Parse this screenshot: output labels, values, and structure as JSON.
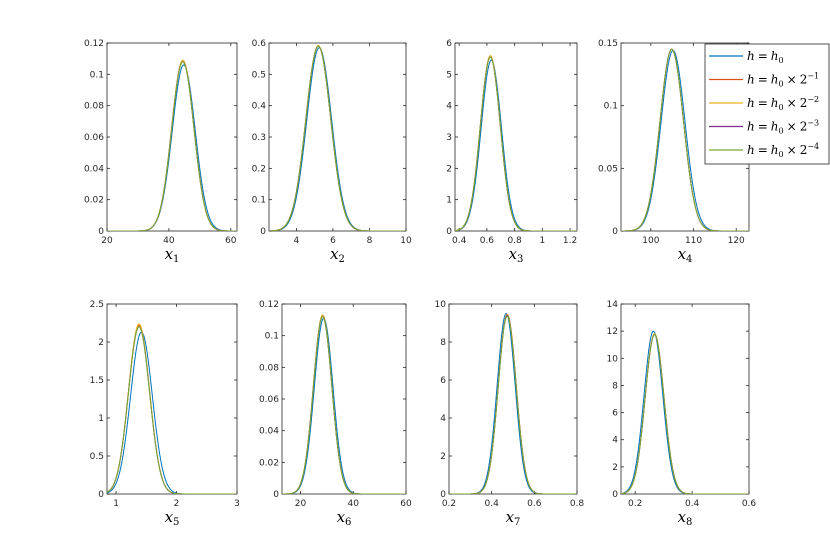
{
  "chart_data": [
    {
      "type": "line",
      "xlabel": {
        "base": "x",
        "sub": "1"
      },
      "xlim": [
        20,
        62
      ],
      "ylim": [
        0,
        0.12
      ],
      "xticks": [
        "20",
        "40",
        "60"
      ],
      "yticks": [
        "0",
        "0.02",
        "0.04",
        "0.06",
        "0.08",
        "0.1",
        "0.12"
      ],
      "series": [
        {
          "name": "h = h0",
          "peak_x": 44.8,
          "peak_y": 0.106,
          "sd": 3.7
        },
        {
          "name": "h = h0 × 2^-1",
          "peak_x": 44.5,
          "peak_y": 0.109,
          "sd": 3.6
        },
        {
          "name": "h = h0 × 2^-2",
          "peak_x": 44.5,
          "peak_y": 0.109,
          "sd": 3.6
        },
        {
          "name": "h = h0 × 2^-3",
          "peak_x": 44.5,
          "peak_y": 0.108,
          "sd": 3.6
        },
        {
          "name": "h = h0 × 2^-4",
          "peak_x": 44.5,
          "peak_y": 0.108,
          "sd": 3.6
        }
      ]
    },
    {
      "type": "line",
      "xlabel": {
        "base": "x",
        "sub": "2"
      },
      "xlim": [
        2.5,
        10
      ],
      "ylim": [
        0,
        0.6
      ],
      "xticks": [
        "4",
        "6",
        "8",
        "10"
      ],
      "yticks": [
        "0",
        "0.1",
        "0.2",
        "0.3",
        "0.4",
        "0.5",
        "0.6"
      ],
      "series": [
        {
          "name": "h = h0",
          "peak_x": 5.25,
          "peak_y": 0.585,
          "sd": 0.68
        },
        {
          "name": "h = h0 × 2^-1",
          "peak_x": 5.2,
          "peak_y": 0.59,
          "sd": 0.68
        },
        {
          "name": "h = h0 × 2^-2",
          "peak_x": 5.2,
          "peak_y": 0.592,
          "sd": 0.68
        },
        {
          "name": "h = h0 × 2^-3",
          "peak_x": 5.2,
          "peak_y": 0.59,
          "sd": 0.68
        },
        {
          "name": "h = h0 × 2^-4",
          "peak_x": 5.2,
          "peak_y": 0.59,
          "sd": 0.68
        }
      ]
    },
    {
      "type": "line",
      "xlabel": {
        "base": "x",
        "sub": "3"
      },
      "xlim": [
        0.37,
        1.25
      ],
      "ylim": [
        0,
        6
      ],
      "xticks": [
        "0.4",
        "0.6",
        "0.8",
        "1",
        "1.2"
      ],
      "yticks": [
        "0",
        "1",
        "2",
        "3",
        "4",
        "5",
        "6"
      ],
      "series": [
        {
          "name": "h = h0",
          "peak_x": 0.632,
          "peak_y": 5.45,
          "sd": 0.073
        },
        {
          "name": "h = h0 × 2^-1",
          "peak_x": 0.625,
          "peak_y": 5.55,
          "sd": 0.072
        },
        {
          "name": "h = h0 × 2^-2",
          "peak_x": 0.625,
          "peak_y": 5.6,
          "sd": 0.072
        },
        {
          "name": "h = h0 × 2^-3",
          "peak_x": 0.625,
          "peak_y": 5.55,
          "sd": 0.072
        },
        {
          "name": "h = h0 × 2^-4",
          "peak_x": 0.625,
          "peak_y": 5.55,
          "sd": 0.072
        }
      ]
    },
    {
      "type": "line",
      "xlabel": {
        "base": "x",
        "sub": "4"
      },
      "xlim": [
        93,
        123
      ],
      "ylim": [
        0,
        0.15
      ],
      "xticks": [
        "100",
        "110",
        "120"
      ],
      "yticks": [
        "0",
        "0.05",
        "0.1",
        "0.15"
      ],
      "series": [
        {
          "name": "h = h0",
          "peak_x": 105.2,
          "peak_y": 0.144,
          "sd": 2.8
        },
        {
          "name": "h = h0 × 2^-1",
          "peak_x": 104.9,
          "peak_y": 0.145,
          "sd": 2.75
        },
        {
          "name": "h = h0 × 2^-2",
          "peak_x": 104.9,
          "peak_y": 0.145,
          "sd": 2.75
        },
        {
          "name": "h = h0 × 2^-3",
          "peak_x": 104.9,
          "peak_y": 0.145,
          "sd": 2.75
        },
        {
          "name": "h = h0 × 2^-4",
          "peak_x": 104.9,
          "peak_y": 0.145,
          "sd": 2.75
        }
      ],
      "legend": "top-right"
    },
    {
      "type": "line",
      "xlabel": {
        "base": "x",
        "sub": "5"
      },
      "xlim": [
        0.85,
        3
      ],
      "ylim": [
        0,
        2.5
      ],
      "xticks": [
        "1",
        "2",
        "3"
      ],
      "yticks": [
        "0",
        "0.5",
        "1",
        "1.5",
        "2",
        "2.5"
      ],
      "series": [
        {
          "name": "h = h0",
          "peak_x": 1.42,
          "peak_y": 2.13,
          "sd": 0.18
        },
        {
          "name": "h = h0 × 2^-1",
          "peak_x": 1.38,
          "peak_y": 2.22,
          "sd": 0.175
        },
        {
          "name": "h = h0 × 2^-2",
          "peak_x": 1.38,
          "peak_y": 2.24,
          "sd": 0.175
        },
        {
          "name": "h = h0 × 2^-3",
          "peak_x": 1.38,
          "peak_y": 2.2,
          "sd": 0.175
        },
        {
          "name": "h = h0 × 2^-4",
          "peak_x": 1.38,
          "peak_y": 2.2,
          "sd": 0.175
        }
      ]
    },
    {
      "type": "line",
      "xlabel": {
        "base": "x",
        "sub": "6"
      },
      "xlim": [
        13,
        60
      ],
      "ylim": [
        0,
        0.12
      ],
      "xticks": [
        "20",
        "40",
        "60"
      ],
      "yticks": [
        "0",
        "0.02",
        "0.04",
        "0.06",
        "0.08",
        "0.1",
        "0.12"
      ],
      "series": [
        {
          "name": "h = h0",
          "peak_x": 28.8,
          "peak_y": 0.111,
          "sd": 3.55
        },
        {
          "name": "h = h0 × 2^-1",
          "peak_x": 28.4,
          "peak_y": 0.113,
          "sd": 3.5
        },
        {
          "name": "h = h0 × 2^-2",
          "peak_x": 28.4,
          "peak_y": 0.113,
          "sd": 3.5
        },
        {
          "name": "h = h0 × 2^-3",
          "peak_x": 28.4,
          "peak_y": 0.112,
          "sd": 3.5
        },
        {
          "name": "h = h0 × 2^-4",
          "peak_x": 28.4,
          "peak_y": 0.112,
          "sd": 3.5
        }
      ]
    },
    {
      "type": "line",
      "xlabel": {
        "base": "x",
        "sub": "7"
      },
      "xlim": [
        0.2,
        0.8
      ],
      "ylim": [
        0,
        10
      ],
      "xticks": [
        "0.2",
        "0.4",
        "0.6",
        "0.8"
      ],
      "yticks": [
        "0",
        "2",
        "4",
        "6",
        "8",
        "10"
      ],
      "series": [
        {
          "name": "h = h0",
          "peak_x": 0.468,
          "peak_y": 9.5,
          "sd": 0.042
        },
        {
          "name": "h = h0 × 2^-1",
          "peak_x": 0.473,
          "peak_y": 9.45,
          "sd": 0.042
        },
        {
          "name": "h = h0 × 2^-2",
          "peak_x": 0.473,
          "peak_y": 9.45,
          "sd": 0.042
        },
        {
          "name": "h = h0 × 2^-3",
          "peak_x": 0.473,
          "peak_y": 9.4,
          "sd": 0.042
        },
        {
          "name": "h = h0 × 2^-4",
          "peak_x": 0.473,
          "peak_y": 9.35,
          "sd": 0.042
        }
      ]
    },
    {
      "type": "line",
      "xlabel": {
        "base": "x",
        "sub": "8"
      },
      "xlim": [
        0.15,
        0.6
      ],
      "ylim": [
        0,
        14
      ],
      "xticks": [
        "0.2",
        "0.4",
        "0.6"
      ],
      "yticks": [
        "0",
        "2",
        "4",
        "6",
        "8",
        "10",
        "12",
        "14"
      ],
      "series": [
        {
          "name": "h = h0",
          "peak_x": 0.264,
          "peak_y": 12.0,
          "sd": 0.033
        },
        {
          "name": "h = h0 × 2^-1",
          "peak_x": 0.268,
          "peak_y": 11.8,
          "sd": 0.033
        },
        {
          "name": "h = h0 × 2^-2",
          "peak_x": 0.268,
          "peak_y": 11.8,
          "sd": 0.033
        },
        {
          "name": "h = h0 × 2^-3",
          "peak_x": 0.268,
          "peak_y": 11.75,
          "sd": 0.033
        },
        {
          "name": "h = h0 × 2^-4",
          "peak_x": 0.268,
          "peak_y": 11.75,
          "sd": 0.033
        }
      ]
    }
  ],
  "legend": {
    "placement": "top-right",
    "entries": [
      {
        "lhs": "h",
        "eq": "=",
        "base": "h",
        "base_sub": "0",
        "times": "",
        "mult": "",
        "exp": "",
        "color": "#0072BD"
      },
      {
        "lhs": "h",
        "eq": "=",
        "base": "h",
        "base_sub": "0",
        "times": "×",
        "mult": "2",
        "exp": "−1",
        "color": "#D95319"
      },
      {
        "lhs": "h",
        "eq": "=",
        "base": "h",
        "base_sub": "0",
        "times": "×",
        "mult": "2",
        "exp": "−2",
        "color": "#EDB120"
      },
      {
        "lhs": "h",
        "eq": "=",
        "base": "h",
        "base_sub": "0",
        "times": "×",
        "mult": "2",
        "exp": "−3",
        "color": "#7E2F8E"
      },
      {
        "lhs": "h",
        "eq": "=",
        "base": "h",
        "base_sub": "0",
        "times": "×",
        "mult": "2",
        "exp": "−4",
        "color": "#77AC30"
      }
    ]
  },
  "colors": [
    "#0072BD",
    "#D95319",
    "#EDB120",
    "#7E2F8E",
    "#77AC30"
  ]
}
